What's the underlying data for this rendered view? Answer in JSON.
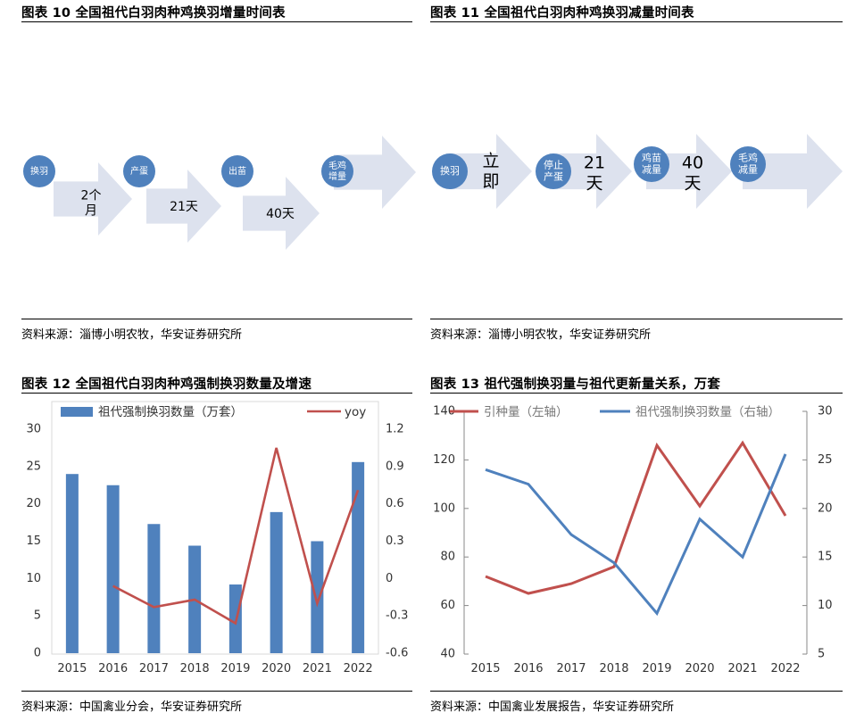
{
  "fig10": {
    "title": "图表 10 全国祖代白羽肉种鸡换羽增量时间表",
    "source": "资料来源：淄博小明农牧，华安证券研究所",
    "steps": [
      "换羽",
      "产蛋",
      "出苗",
      "毛鸡\n增量"
    ],
    "durations": [
      "2个\n月",
      "21天",
      "40天"
    ]
  },
  "fig11": {
    "title": "图表 11 全国祖代白羽肉种鸡换羽减量时间表",
    "source": "资料来源：淄博小明农牧，华安证券研究所",
    "steps": [
      "换羽",
      "停止\n产蛋",
      "鸡苗\n减量",
      "毛鸡\n减量"
    ],
    "durations": [
      "立\n即",
      "21\n天",
      "40\n天"
    ]
  },
  "fig12": {
    "title": "图表 12 全国祖代白羽肉种鸡强制换羽数量及增速",
    "source": "资料来源：中国禽业分会，华安证券研究所"
  },
  "fig13": {
    "title": "图表 13 祖代强制换羽量与祖代更新量关系，万套",
    "source": "资料来源：中国禽业发展报告，华安证券研究所"
  },
  "colors": {
    "bar": "#4f81bd",
    "line_red": "#c0504d",
    "line_blue": "#4f81bd",
    "arrow": "#dde2ee",
    "circle": "#4f81bd"
  },
  "chart_data": [
    {
      "type": "bar",
      "categories": [
        "2015",
        "2016",
        "2017",
        "2018",
        "2019",
        "2020",
        "2021",
        "2022"
      ],
      "series": [
        {
          "name": "祖代强制换羽数量（万套）",
          "axis": "left",
          "type": "bar",
          "values": [
            24.0,
            22.5,
            17.3,
            14.4,
            9.2,
            18.9,
            15.0,
            25.6
          ]
        },
        {
          "name": "yoy",
          "axis": "right",
          "type": "line",
          "values": [
            null,
            -0.06,
            -0.23,
            -0.17,
            -0.36,
            1.05,
            -0.2,
            0.71
          ]
        }
      ],
      "ylim": [
        0,
        30
      ],
      "yticks": [
        0,
        5,
        10,
        15,
        20,
        25,
        30
      ],
      "y2lim": [
        -0.6,
        1.2
      ],
      "y2ticks": [
        "-0.6",
        "-0.3",
        "0",
        "0.3",
        "0.6",
        "0.9",
        "1.2"
      ],
      "legend": "top"
    },
    {
      "type": "line",
      "categories": [
        "2015",
        "2016",
        "2017",
        "2018",
        "2019",
        "2020",
        "2021",
        "2022"
      ],
      "series": [
        {
          "name": "引种量（左轴）",
          "axis": "left",
          "values": [
            72,
            65,
            69,
            76,
            126,
            101,
            127,
            97
          ]
        },
        {
          "name": "祖代强制换羽数量（右轴）",
          "axis": "right",
          "values": [
            24.0,
            22.5,
            17.3,
            14.4,
            9.2,
            18.9,
            15.0,
            25.6
          ]
        }
      ],
      "ylim": [
        40,
        140
      ],
      "yticks": [
        40,
        60,
        80,
        100,
        120,
        140
      ],
      "y2lim": [
        5,
        30
      ],
      "y2ticks": [
        5,
        10,
        15,
        20,
        25,
        30
      ],
      "legend": "top"
    }
  ]
}
